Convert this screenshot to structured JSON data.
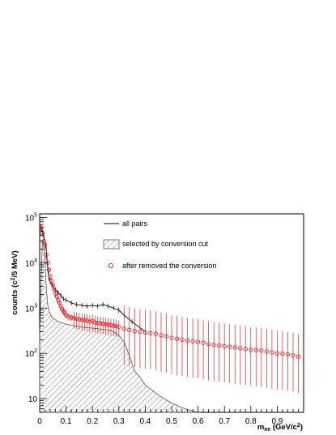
{
  "chart_data": {
    "type": "scatter",
    "title": "",
    "xlabel_main": "m",
    "xlabel_sub": "ee",
    "xlabel_unit": "(GeV/c",
    "xlabel_unit_sup": "2",
    "xlabel_unit_close": ")",
    "ylabel_main": "counts (c",
    "ylabel_sup": "2",
    "ylabel_rest": "/5 MeV)",
    "xlim": [
      0,
      1.0
    ],
    "ylim": [
      5,
      120000
    ],
    "y_scale": "log",
    "grid": false,
    "x_tick_labels": [
      "0",
      "0.1",
      "0.2",
      "0.3",
      "0.4",
      "0.5",
      "0.6",
      "0.7",
      "0.8",
      "0.9"
    ],
    "y_tick_labels": [
      {
        "base": "10",
        "exp": ""
      },
      {
        "base": "10",
        "exp": "2"
      },
      {
        "base": "10",
        "exp": "3"
      },
      {
        "base": "10",
        "exp": "4"
      },
      {
        "base": "10",
        "exp": "5"
      }
    ],
    "legend": [
      {
        "label": "all pairs",
        "style": "line",
        "color": "#000000"
      },
      {
        "label": "selected by conversion cut",
        "style": "hatched",
        "color": "#555555"
      },
      {
        "label": "after removed the conversion",
        "style": "open-circle",
        "color": "#e0262e"
      }
    ],
    "legend_position": "top-center",
    "colors": {
      "all_pairs": "#000000",
      "selected": "#555555",
      "removed": "#e0262e"
    },
    "series": [
      {
        "name": "all pairs",
        "x": [
          0.005,
          0.01,
          0.015,
          0.02,
          0.025,
          0.03,
          0.035,
          0.04,
          0.05,
          0.06,
          0.07,
          0.08,
          0.09,
          0.1,
          0.12,
          0.14,
          0.16,
          0.18,
          0.2,
          0.22,
          0.24,
          0.26,
          0.28,
          0.3,
          0.32,
          0.35,
          0.4
        ],
        "values": [
          60000,
          50000,
          40000,
          30000,
          20000,
          8000,
          4500,
          3800,
          3000,
          2500,
          2200,
          1900,
          1600,
          1500,
          1300,
          1200,
          1150,
          1100,
          1150,
          1100,
          1200,
          1100,
          1000,
          900,
          700,
          500,
          300
        ]
      },
      {
        "name": "selected by conversion cut",
        "x": [
          0.0,
          0.005,
          0.01,
          0.015,
          0.02,
          0.025,
          0.03,
          0.035,
          0.04,
          0.045,
          0.05,
          0.06,
          0.07,
          0.08,
          0.09,
          0.1,
          0.12,
          0.14,
          0.16,
          0.18,
          0.2,
          0.22,
          0.24,
          0.26,
          0.28,
          0.3,
          0.32,
          0.34,
          0.36,
          0.38,
          0.4,
          0.45,
          0.5,
          0.55,
          0.6
        ],
        "values": [
          200,
          3000,
          30000,
          25000,
          12000,
          3000,
          1200,
          900,
          750,
          650,
          600,
          550,
          500,
          480,
          460,
          440,
          420,
          400,
          380,
          370,
          360,
          350,
          340,
          330,
          300,
          250,
          180,
          90,
          40,
          30,
          20,
          12,
          8,
          6,
          5
        ]
      },
      {
        "name": "after removed the conversion",
        "x": [
          0.005,
          0.01,
          0.015,
          0.02,
          0.025,
          0.03,
          0.035,
          0.04,
          0.045,
          0.05,
          0.055,
          0.06,
          0.065,
          0.07,
          0.075,
          0.08,
          0.085,
          0.09,
          0.095,
          0.1,
          0.11,
          0.12,
          0.13,
          0.14,
          0.15,
          0.16,
          0.17,
          0.18,
          0.19,
          0.2,
          0.21,
          0.22,
          0.23,
          0.24,
          0.25,
          0.26,
          0.27,
          0.28,
          0.29,
          0.3,
          0.32,
          0.34,
          0.36,
          0.38,
          0.4,
          0.42,
          0.44,
          0.46,
          0.48,
          0.5,
          0.52,
          0.54,
          0.56,
          0.58,
          0.6,
          0.62,
          0.64,
          0.66,
          0.68,
          0.7,
          0.72,
          0.74,
          0.76,
          0.78,
          0.8,
          0.82,
          0.84,
          0.86,
          0.88,
          0.9,
          0.92,
          0.94,
          0.96,
          0.98
        ],
        "values": [
          60000,
          45000,
          30000,
          25000,
          15000,
          10000,
          7000,
          5000,
          4000,
          3200,
          2600,
          2100,
          1800,
          1500,
          1300,
          1100,
          950,
          850,
          800,
          700,
          650,
          620,
          600,
          580,
          560,
          550,
          540,
          530,
          500,
          520,
          480,
          470,
          460,
          450,
          440,
          430,
          420,
          410,
          400,
          380,
          350,
          330,
          310,
          300,
          290,
          280,
          270,
          250,
          240,
          220,
          210,
          200,
          190,
          185,
          180,
          170,
          160,
          155,
          150,
          145,
          140,
          135,
          130,
          125,
          120,
          118,
          115,
          110,
          105,
          100,
          98,
          95,
          90,
          85
        ]
      }
    ]
  }
}
